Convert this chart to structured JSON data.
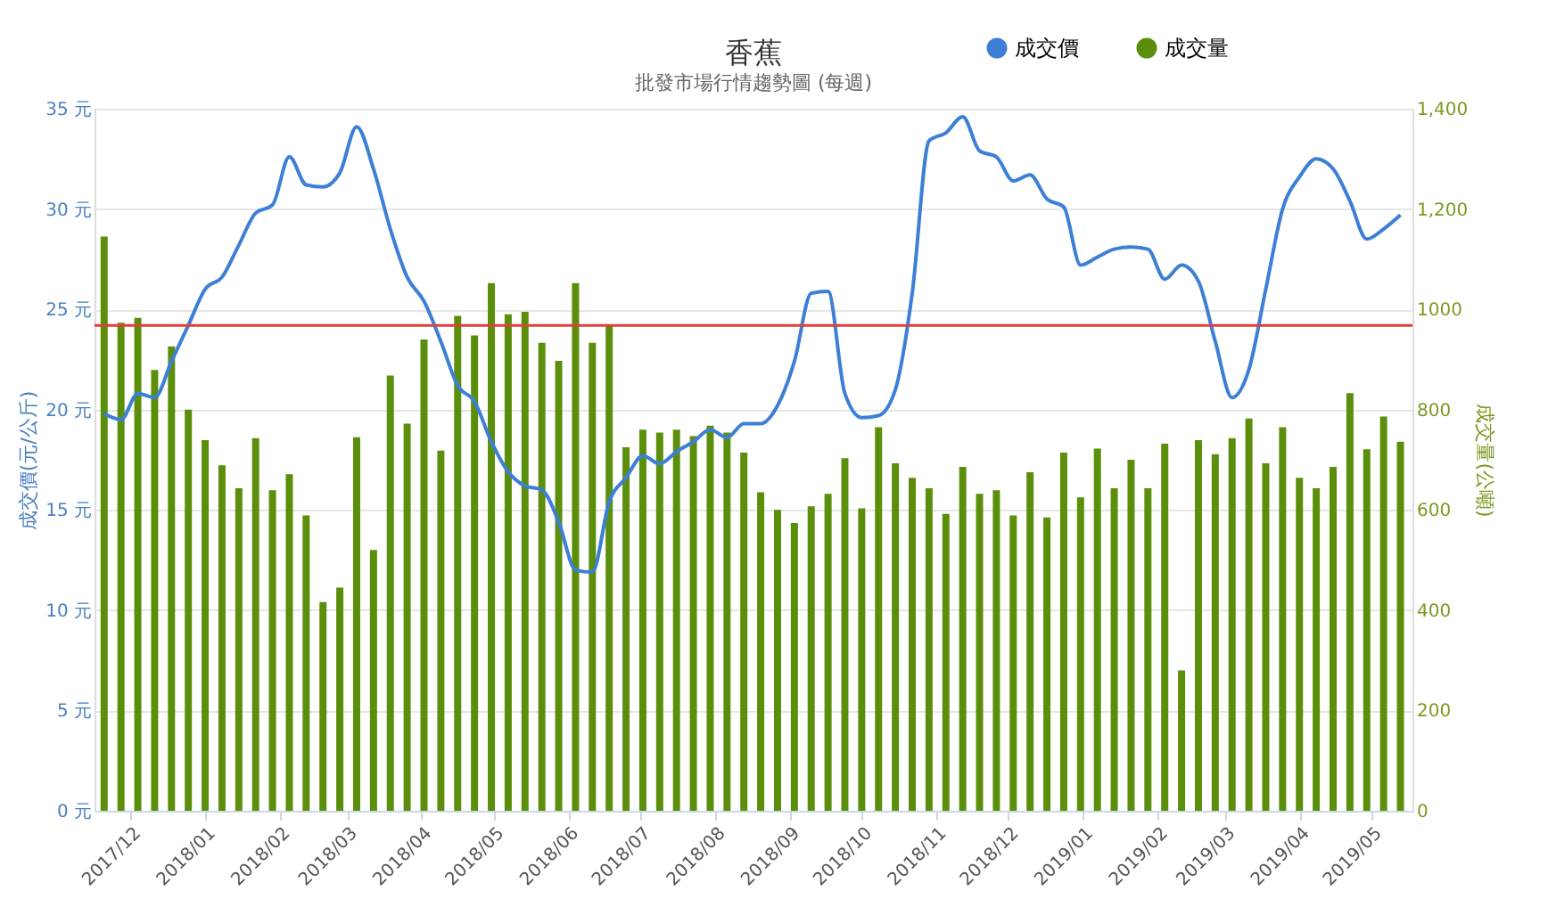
{
  "chart_data": {
    "type": "bar",
    "title": "香蕉",
    "subtitle": "批發市場行情趨勢圖 (每週)",
    "ylabel": "成交價(元/公斤)",
    "y2label": "成交量(公噸)",
    "x": [
      "2017-11-20",
      "2017-11-27",
      "2017-12-04",
      "2017-12-11",
      "2017-12-18",
      "2017-12-25",
      "2018-01-01",
      "2018-01-08",
      "2018-01-15",
      "2018-01-22",
      "2018-01-29",
      "2018-02-05",
      "2018-02-12",
      "2018-02-19",
      "2018-02-26",
      "2018-03-05",
      "2018-03-12",
      "2018-03-19",
      "2018-03-26",
      "2018-04-02",
      "2018-04-09",
      "2018-04-16",
      "2018-04-23",
      "2018-04-30",
      "2018-05-07",
      "2018-05-14",
      "2018-05-21",
      "2018-05-28",
      "2018-06-04",
      "2018-06-11",
      "2018-06-18",
      "2018-06-25",
      "2018-07-02",
      "2018-07-09",
      "2018-07-16",
      "2018-07-23",
      "2018-07-30",
      "2018-08-06",
      "2018-08-13",
      "2018-08-20",
      "2018-08-27",
      "2018-09-03",
      "2018-09-10",
      "2018-09-17",
      "2018-09-24",
      "2018-10-01",
      "2018-10-08",
      "2018-10-15",
      "2018-10-22",
      "2018-10-29",
      "2018-11-05",
      "2018-11-12",
      "2018-11-19",
      "2018-11-26",
      "2018-12-03",
      "2018-12-10",
      "2018-12-17",
      "2018-12-24",
      "2018-12-31",
      "2019-01-07",
      "2019-01-14",
      "2019-01-21",
      "2019-01-28",
      "2019-02-04",
      "2019-02-11",
      "2019-02-18",
      "2019-02-25",
      "2019-03-04",
      "2019-03-11",
      "2019-03-18",
      "2019-03-25",
      "2019-04-01",
      "2019-04-08",
      "2019-04-15",
      "2019-04-22",
      "2019-04-29",
      "2019-05-06",
      "2019-05-13"
    ],
    "series": [
      {
        "name": "成交價",
        "type": "line",
        "axis": "y",
        "color": "#3d7fd6",
        "values": [
          19.8,
          19.5,
          20.8,
          20.6,
          22.4,
          24.2,
          26.0,
          26.6,
          28.2,
          29.8,
          30.2,
          32.6,
          31.2,
          31.1,
          31.8,
          34.1,
          32.0,
          29.0,
          26.6,
          25.4,
          23.4,
          21.2,
          20.4,
          18.4,
          16.9,
          16.2,
          16.0,
          14.4,
          12.0,
          11.9,
          15.4,
          16.6,
          17.7,
          17.3,
          17.9,
          18.4,
          19.0,
          18.6,
          19.3,
          19.3,
          20.2,
          22.4,
          25.8,
          25.9,
          20.8,
          19.6,
          19.7,
          21.0,
          25.8,
          33.4,
          33.8,
          34.6,
          32.9,
          32.6,
          31.4,
          31.7,
          30.5,
          30.1,
          27.2,
          27.6,
          28.0,
          28.1,
          28.0,
          26.5,
          27.2,
          26.4,
          23.4,
          20.6,
          22.0,
          26.0,
          30.0,
          31.6,
          32.5,
          32.0,
          30.4,
          28.5,
          29.0,
          29.7
        ]
      },
      {
        "name": "成交量",
        "axis": "y2",
        "color": "#5b8f0b",
        "values": [
          1145,
          973,
          983,
          879,
          926,
          800,
          739,
          689,
          643,
          743,
          639,
          671,
          589,
          416,
          445,
          745,
          520,
          868,
          772,
          940,
          718,
          987,
          948,
          1052,
          990,
          995,
          933,
          897,
          1052,
          933,
          970,
          725,
          760,
          754,
          760,
          747,
          768,
          754,
          714,
          635,
          600,
          574,
          607,
          632,
          703,
          603,
          765,
          693,
          664,
          643,
          592,
          686,
          632,
          639,
          589,
          675,
          585,
          714,
          625,
          722,
          643,
          700,
          643,
          732,
          280,
          739,
          711,
          743,
          782,
          693,
          765,
          664,
          643,
          686,
          833,
          721,
          786,
          736
        ]
      }
    ],
    "xlim": [
      "2017-11-16",
      "2019-05-18"
    ],
    "xticks": [
      {
        "value": "2017-12",
        "label": "2017/12"
      },
      {
        "value": "2018-01",
        "label": "2018/01"
      },
      {
        "value": "2018-02",
        "label": "2018/02"
      },
      {
        "value": "2018-03",
        "label": "2018/03"
      },
      {
        "value": "2018-04",
        "label": "2018/04"
      },
      {
        "value": "2018-05",
        "label": "2018/05"
      },
      {
        "value": "2018-06",
        "label": "2018/06"
      },
      {
        "value": "2018-07",
        "label": "2018/07"
      },
      {
        "value": "2018-08",
        "label": "2018/08"
      },
      {
        "value": "2018-09",
        "label": "2018/09"
      },
      {
        "value": "2018-10",
        "label": "2018/10"
      },
      {
        "value": "2018-11",
        "label": "2018/11"
      },
      {
        "value": "2018-12",
        "label": "2018/12"
      },
      {
        "value": "2019-01",
        "label": "2019/01"
      },
      {
        "value": "2019-02",
        "label": "2019/02"
      },
      {
        "value": "2019-03",
        "label": "2019/03"
      },
      {
        "value": "2019-04",
        "label": "2019/04"
      },
      {
        "value": "2019-05",
        "label": "2019/05"
      }
    ],
    "ylim": [
      0,
      35
    ],
    "yticks": [
      {
        "value": 0,
        "label": "0 元"
      },
      {
        "value": 5,
        "label": "5 元"
      },
      {
        "value": 10,
        "label": "10 元"
      },
      {
        "value": 15,
        "label": "15 元"
      },
      {
        "value": 20,
        "label": "20 元"
      },
      {
        "value": 25,
        "label": "25 元"
      },
      {
        "value": 30,
        "label": "30 元"
      },
      {
        "value": 35,
        "label": "35 元"
      }
    ],
    "y2lim": [
      0,
      1400
    ],
    "y2ticks": [
      0,
      200,
      400,
      600,
      800,
      1000,
      {
        "value": 1200,
        "label": "1,200"
      },
      {
        "value": 1400,
        "label": "1,400"
      }
    ],
    "ref_lines": [
      {
        "axis": "y",
        "value": 24.2,
        "color": "#e0403a"
      }
    ],
    "grid": "y",
    "legend": "top right",
    "marker": "none"
  }
}
